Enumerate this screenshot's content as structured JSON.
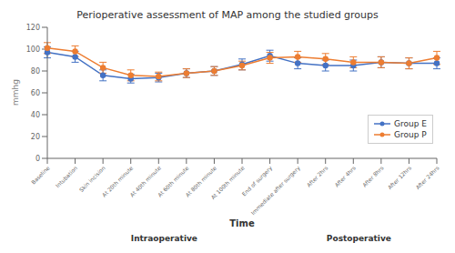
{
  "chart_data": {
    "type": "line",
    "title": "Perioperative assessment of MAP among the studied groups",
    "xlabel": "Time",
    "ylabel": "mmhg",
    "categories": [
      "Baseline",
      "Intubation",
      "Skin incision",
      "At 20th minute",
      "At 40th minute",
      "At 60th minute",
      "At 80th minute",
      "At 100th minute",
      "End of surgery",
      "Immediate after surgery",
      "After 2hrs",
      "After 4hrs",
      "After 8hrs",
      "After 12hrs",
      "After 24hrs"
    ],
    "series": [
      {
        "name": "Group E",
        "color": "#4472C4",
        "marker": "circle",
        "line_style": "solid",
        "values": [
          97,
          93,
          76,
          73,
          74,
          78,
          80,
          86,
          94,
          87,
          85,
          85,
          88,
          87,
          87
        ],
        "errors": [
          5,
          5,
          5,
          4,
          4,
          4,
          4,
          5,
          5,
          5,
          5,
          5,
          5,
          5,
          5
        ]
      },
      {
        "name": "Group P",
        "color": "#ED7D31",
        "marker": "circle",
        "line_style": "solid",
        "values": [
          101,
          98,
          83,
          76,
          75,
          78,
          80,
          85,
          92,
          93,
          91,
          88,
          88,
          87,
          92
        ],
        "errors": [
          5,
          5,
          5,
          5,
          4,
          4,
          4,
          4,
          5,
          5,
          5,
          5,
          5,
          5,
          6
        ]
      }
    ],
    "ylim": [
      0,
      120
    ],
    "yticks": [
      0,
      20,
      40,
      60,
      80,
      100,
      120
    ],
    "grid": false,
    "legend": "lower right",
    "annotations": [
      "Intraoperative",
      "Postoperative"
    ]
  }
}
